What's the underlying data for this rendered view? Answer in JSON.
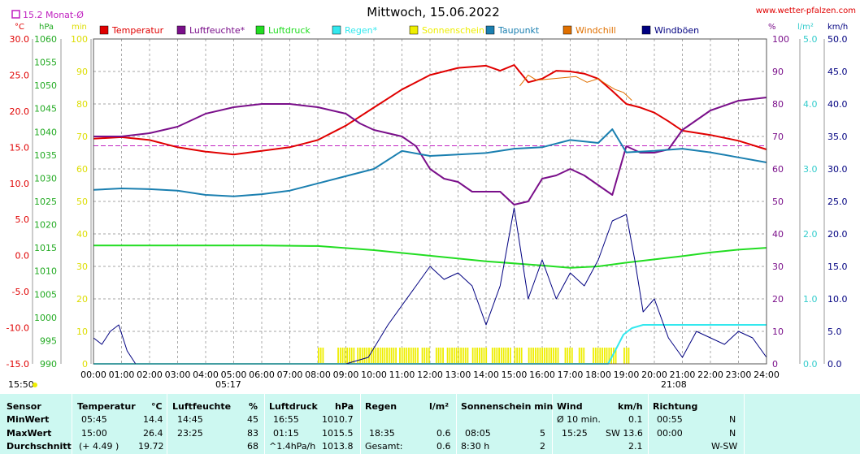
{
  "header": {
    "title": "Mittwoch, 15.06.2022",
    "site": "www.wetter-pfalzen.com",
    "monthly_avg_label": "15.2 Monat-Ø",
    "units": {
      "temp": "°C",
      "pressure": "hPa",
      "sun": "min",
      "humidity": "%",
      "rain": "l/m²",
      "wind": "km/h"
    },
    "footer_time": "15:50",
    "sunrise": "05:17",
    "sunset": "21:08"
  },
  "legend": [
    {
      "name": "Temperatur",
      "color": "#e00000"
    },
    {
      "name": "Luftfeuchte*",
      "color": "#7a0f8a"
    },
    {
      "name": "Luftdruck",
      "color": "#22dd22"
    },
    {
      "name": "Regen*",
      "color": "#33e8ee"
    },
    {
      "name": "Sonnenschein",
      "color": "#eeee00"
    },
    {
      "name": "Taupunkt",
      "color": "#1a7fb0"
    },
    {
      "name": "Windchill",
      "color": "#e07000"
    },
    {
      "name": "Windböen",
      "color": "#000080"
    }
  ],
  "chart_data": {
    "type": "line",
    "title": "Mittwoch, 15.06.2022",
    "x_ticks": [
      "00:00",
      "01:00",
      "02:00",
      "03:00",
      "04:00",
      "05:00",
      "06:00",
      "07:00",
      "08:00",
      "09:00",
      "10:00",
      "11:00",
      "12:00",
      "13:00",
      "14:00",
      "15:00",
      "16:00",
      "17:00",
      "18:00",
      "19:00",
      "20:00",
      "21:00",
      "22:00",
      "23:00",
      "24:00"
    ],
    "axes": {
      "temperature_c": {
        "range": [
          -15,
          30
        ],
        "ticks": [
          "30.0",
          "25.0",
          "20.0",
          "15.0",
          "10.0",
          "5.0",
          "0.0",
          "-5.0",
          "-10.0",
          "-15.0"
        ]
      },
      "pressure_hpa": {
        "range": [
          990,
          1060
        ],
        "ticks": [
          "1060",
          "1055",
          "1050",
          "1045",
          "1040",
          "1035",
          "1030",
          "1025",
          "1020",
          "1015",
          "1010",
          "1005",
          "1000",
          "995",
          "990"
        ]
      },
      "sunshine_min": {
        "range": [
          0,
          100
        ],
        "ticks": [
          "100",
          "90",
          "80",
          "70",
          "60",
          "50",
          "40",
          "30",
          "20",
          "10",
          "0"
        ]
      },
      "humidity_pct": {
        "range": [
          0,
          100
        ],
        "ticks": [
          "100",
          "90",
          "80",
          "70",
          "60",
          "50",
          "40",
          "30",
          "20",
          "10",
          "0"
        ]
      },
      "rain_lm2": {
        "range": [
          0,
          5
        ],
        "ticks": [
          "5.0",
          "4.0",
          "3.0",
          "2.0",
          "1.0",
          "0.0"
        ]
      },
      "wind_kmh": {
        "range": [
          0,
          50
        ],
        "ticks": [
          "50.0",
          "45.0",
          "40.0",
          "35.0",
          "30.0",
          "25.0",
          "20.0",
          "15.0",
          "10.0",
          "5.0",
          "0.0"
        ]
      }
    },
    "monthly_avg_temp": 15.2,
    "series": [
      {
        "name": "Temperatur",
        "unit": "°C",
        "hours": [
          0,
          1,
          2,
          3,
          4,
          5,
          6,
          7,
          8,
          9,
          10,
          11,
          12,
          13,
          14,
          14.5,
          15,
          15.5,
          16,
          16.5,
          17,
          17.5,
          18,
          18.5,
          19,
          19.5,
          20,
          20.5,
          21,
          22,
          23,
          24
        ],
        "values": [
          16.2,
          16.4,
          16.0,
          15.0,
          14.4,
          14.0,
          14.5,
          15.0,
          16.0,
          18.0,
          20.5,
          23.0,
          25.0,
          26.0,
          26.3,
          25.6,
          26.4,
          24.0,
          24.5,
          25.6,
          25.5,
          25.2,
          24.5,
          22.8,
          21.0,
          20.5,
          19.8,
          18.6,
          17.3,
          16.7,
          15.9,
          14.7
        ]
      },
      {
        "name": "Luftfeuchte*",
        "unit": "%",
        "hours": [
          0,
          1,
          2,
          3,
          4,
          5,
          6,
          7,
          8,
          9,
          9.5,
          10,
          11,
          11.5,
          12,
          12.5,
          13,
          13.5,
          14,
          14.5,
          15,
          15.5,
          16,
          16.5,
          17,
          17.5,
          18,
          18.5,
          19,
          19.5,
          20,
          20.5,
          21,
          22,
          23,
          24
        ],
        "values": [
          70,
          70,
          71,
          73,
          77,
          79,
          80,
          80,
          79,
          77,
          74,
          72,
          70,
          67,
          60,
          57,
          56,
          53,
          53,
          53,
          49,
          50,
          57,
          58,
          60,
          58,
          55,
          52,
          67,
          65,
          65,
          66,
          72,
          78,
          81,
          82
        ]
      },
      {
        "name": "Luftdruck",
        "unit": "hPa",
        "hours": [
          0,
          2,
          4,
          6,
          8,
          10,
          12,
          14,
          16,
          17,
          18,
          19,
          20,
          21,
          22,
          23,
          24
        ],
        "values": [
          1015.5,
          1015.5,
          1015.5,
          1015.5,
          1015.4,
          1014.5,
          1013.3,
          1012.1,
          1011.2,
          1010.7,
          1011.0,
          1011.8,
          1012.5,
          1013.2,
          1014.0,
          1014.6,
          1015.0
        ]
      },
      {
        "name": "Regen*",
        "unit": "l/m²",
        "hours": [
          0,
          18.35,
          18.6,
          18.9,
          19.2,
          19.6,
          20,
          24
        ],
        "values": [
          0,
          0,
          0.2,
          0.45,
          0.55,
          0.6,
          0.6,
          0.6
        ]
      },
      {
        "name": "Taupunkt",
        "unit": "°C",
        "hours": [
          0,
          1,
          2,
          3,
          4,
          5,
          6,
          7,
          8,
          9,
          10,
          11,
          12,
          13,
          14,
          15,
          16,
          17,
          18,
          18.5,
          19,
          20,
          21,
          22,
          23,
          24
        ],
        "values": [
          9.1,
          9.3,
          9.2,
          9.0,
          8.4,
          8.2,
          8.5,
          9.0,
          10.0,
          11.0,
          12.0,
          14.5,
          13.8,
          14.0,
          14.2,
          14.8,
          15.0,
          16.0,
          15.6,
          17.5,
          14.3,
          14.5,
          14.8,
          14.3,
          13.6,
          12.9
        ]
      },
      {
        "name": "Windchill",
        "unit": "°C",
        "hours": [
          15.2,
          15.5,
          15.8,
          17.2,
          17.6,
          18.0,
          18.3,
          18.6,
          18.9,
          19.2
        ],
        "values": [
          23.5,
          25.0,
          24.3,
          24.8,
          24.0,
          24.5,
          23.7,
          23.0,
          22.6,
          21.5
        ]
      },
      {
        "name": "Windböen",
        "unit": "km/h",
        "hours": [
          0,
          0.3,
          0.6,
          0.9,
          1.2,
          1.5,
          3,
          5,
          7,
          9,
          9.8,
          10.5,
          11,
          11.5,
          12,
          12.5,
          13,
          13.5,
          14,
          14.5,
          15,
          15.5,
          16,
          16.5,
          17,
          17.5,
          18,
          18.5,
          19,
          19.3,
          19.6,
          20,
          20.5,
          21,
          21.5,
          22,
          22.5,
          23,
          23.5,
          24
        ],
        "values": [
          4,
          3,
          5,
          6,
          2,
          0,
          0,
          0,
          0,
          0,
          1,
          6,
          9,
          12,
          15,
          13,
          14,
          12,
          6,
          12,
          24,
          10,
          16,
          10,
          14,
          12,
          16,
          22,
          23,
          16,
          8,
          10,
          4,
          1,
          5,
          4,
          3,
          5,
          4,
          1
        ]
      }
    ]
  },
  "stats_table": {
    "headers": {
      "sensor": "Sensor",
      "temp": "Temperatur",
      "temp_unit": "°C",
      "hum": "Luftfeuchte",
      "hum_unit": "%",
      "press": "Luftdruck",
      "press_unit": "hPa",
      "rain": "Regen",
      "rain_unit": "l/m²",
      "sun": "Sonnenschein min",
      "wind": "Wind",
      "wind_unit": "km/h",
      "dir": "Richtung"
    },
    "rows": [
      {
        "label": "MinWert",
        "temp_time": "05:45",
        "temp_val": "14.4",
        "hum_time": "14:45",
        "hum_val": "45",
        "press_time": "16:55",
        "press_val": "1010.7",
        "rain_time": "",
        "rain_val": "",
        "sun_time": "",
        "sun_val": "",
        "wind_time": "Ø 10 min.",
        "wind_val": "0.1",
        "dir_time": "00:55",
        "dir_val": "N"
      },
      {
        "label": "MaxWert",
        "temp_time": "15:00",
        "temp_val": "26.4",
        "hum_time": "23:25",
        "hum_val": "83",
        "press_time": "01:15",
        "press_val": "1015.5",
        "rain_time": "18:35",
        "rain_val": "0.6",
        "sun_time": "08:05",
        "sun_val": "5",
        "wind_time": "15:25",
        "wind_val": "SW 13.6",
        "dir_time": "00:00",
        "dir_val": "N"
      },
      {
        "label": "Durchschnitt",
        "temp_time": "(+ 4.49 )",
        "temp_val": "19.72",
        "hum_time": "",
        "hum_val": "68",
        "press_time": "^1.4hPa/h",
        "press_val": "1013.8",
        "rain_time": "Gesamt:",
        "rain_val": "0.6",
        "sun_time": "8:30 h",
        "sun_val": "2",
        "wind_time": "",
        "wind_val": "2.1",
        "dir_time": "",
        "dir_val": "W-SW"
      }
    ]
  }
}
